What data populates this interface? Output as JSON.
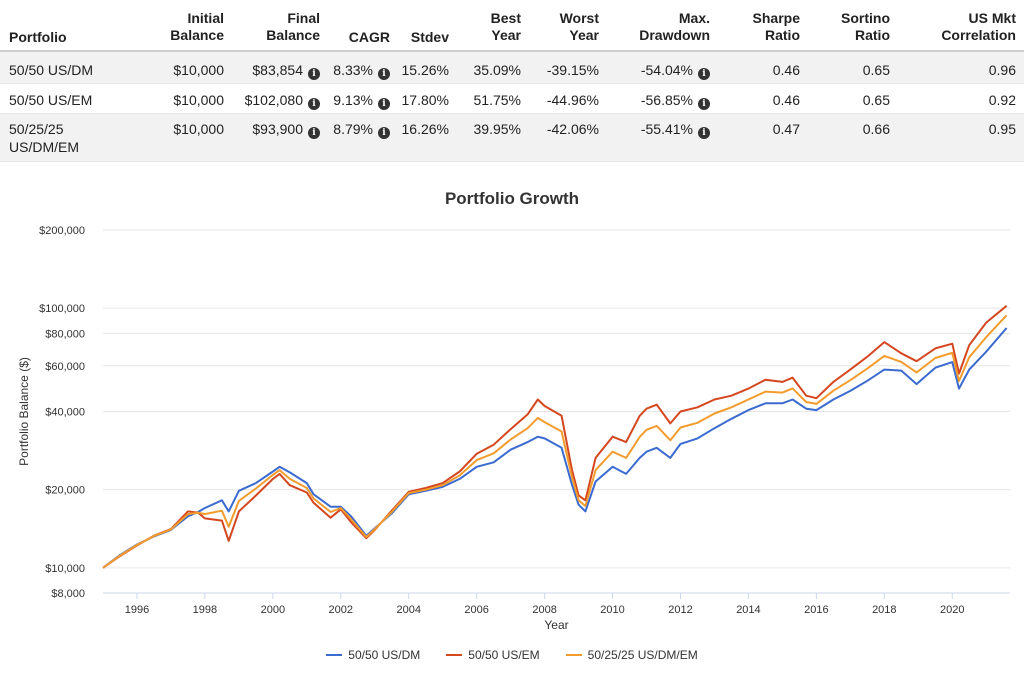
{
  "table": {
    "headers": {
      "portfolio": "Portfolio",
      "initial": [
        "Initial",
        "Balance"
      ],
      "final": [
        "Final",
        "Balance"
      ],
      "cagr": "CAGR",
      "stdev": "Stdev",
      "best": [
        "Best",
        "Year"
      ],
      "worst": [
        "Worst",
        "Year"
      ],
      "mdd": [
        "Max.",
        "Drawdown"
      ],
      "sharpe": [
        "Sharpe",
        "Ratio"
      ],
      "sortino": [
        "Sortino",
        "Ratio"
      ],
      "corr": [
        "US Mkt",
        "Correlation"
      ]
    },
    "rows": [
      {
        "portfolio": "50/50 US/DM",
        "initial": "$10,000",
        "final": "$83,854",
        "cagr": "8.33%",
        "stdev": "15.26%",
        "best": "35.09%",
        "worst": "-39.15%",
        "mdd": "-54.04%",
        "sharpe": "0.46",
        "sortino": "0.65",
        "corr": "0.96"
      },
      {
        "portfolio": "50/50 US/EM",
        "initial": "$10,000",
        "final": "$102,080",
        "cagr": "9.13%",
        "stdev": "17.80%",
        "best": "51.75%",
        "worst": "-44.96%",
        "mdd": "-56.85%",
        "sharpe": "0.46",
        "sortino": "0.65",
        "corr": "0.92"
      },
      {
        "portfolio": "50/25/25 US/DM/EM",
        "initial": "$10,000",
        "final": "$93,900",
        "cagr": "8.79%",
        "stdev": "16.26%",
        "best": "39.95%",
        "worst": "-42.06%",
        "mdd": "-55.41%",
        "sharpe": "0.47",
        "sortino": "0.66",
        "corr": "0.95"
      }
    ]
  },
  "chart_data": {
    "type": "line",
    "title": "Portfolio Growth",
    "xlabel": "Year",
    "ylabel": "Portfolio Balance ($)",
    "y_scale": "log",
    "ylim": [
      8000,
      200000
    ],
    "xlim": [
      1995.0,
      2021.7
    ],
    "yticks": [
      {
        "value": 200000,
        "label": "$200,000"
      },
      {
        "value": 100000,
        "label": "$100,000"
      },
      {
        "value": 80000,
        "label": "$80,000"
      },
      {
        "value": 60000,
        "label": "$60,000"
      },
      {
        "value": 40000,
        "label": "$40,000"
      },
      {
        "value": 20000,
        "label": "$20,000"
      },
      {
        "value": 10000,
        "label": "$10,000"
      },
      {
        "value": 8000,
        "label": "$8,000"
      }
    ],
    "xticks": [
      1996,
      1998,
      2000,
      2002,
      2004,
      2006,
      2008,
      2010,
      2012,
      2014,
      2016,
      2018,
      2020
    ],
    "grid": "horizontal",
    "legend_position": "bottom",
    "x": [
      1995.0,
      1995.5,
      1996.0,
      1996.5,
      1997.0,
      1997.5,
      1997.8,
      1998.0,
      1998.5,
      1998.7,
      1999.0,
      1999.5,
      2000.0,
      2000.2,
      2000.5,
      2001.0,
      2001.2,
      2001.7,
      2002.0,
      2002.3,
      2002.75,
      2003.0,
      2003.5,
      2004.0,
      2004.5,
      2005.0,
      2005.5,
      2006.0,
      2006.5,
      2007.0,
      2007.5,
      2007.8,
      2008.0,
      2008.5,
      2008.8,
      2009.0,
      2009.2,
      2009.5,
      2010.0,
      2010.4,
      2010.8,
      2011.0,
      2011.3,
      2011.7,
      2012.0,
      2012.5,
      2013.0,
      2013.5,
      2014.0,
      2014.5,
      2015.0,
      2015.3,
      2015.7,
      2016.0,
      2016.5,
      2017.0,
      2017.5,
      2018.0,
      2018.5,
      2018.95,
      2019.5,
      2020.0,
      2020.2,
      2020.5,
      2021.0,
      2021.6
    ],
    "series": [
      {
        "name": "50/50 US/DM",
        "color": "#3b6bd0",
        "values": [
          10000,
          11200,
          12300,
          13200,
          14000,
          15800,
          16400,
          17000,
          18200,
          16500,
          19800,
          21200,
          23500,
          24500,
          23300,
          21200,
          19200,
          17200,
          17200,
          15800,
          13300,
          14200,
          16200,
          19200,
          19800,
          20500,
          22000,
          24500,
          25500,
          28500,
          30500,
          32000,
          31500,
          29000,
          21000,
          17500,
          16500,
          21500,
          24500,
          23000,
          26500,
          28000,
          29000,
          26500,
          30000,
          31500,
          34500,
          37500,
          40500,
          43000,
          43000,
          44500,
          41000,
          40500,
          44500,
          48000,
          52500,
          58000,
          57500,
          51000,
          59000,
          62000,
          49000,
          58000,
          68000,
          83854
        ]
      },
      {
        "name": "50/50 US/EM",
        "color": "#d4471f",
        "values": [
          10000,
          11100,
          12200,
          13300,
          14100,
          16500,
          16300,
          15500,
          15200,
          12700,
          16500,
          19000,
          22000,
          23000,
          20800,
          19500,
          17800,
          15600,
          16800,
          15000,
          13000,
          14000,
          16600,
          19600,
          20300,
          21200,
          23500,
          27500,
          29800,
          34200,
          39000,
          44500,
          42000,
          38500,
          24000,
          19000,
          18200,
          26500,
          32000,
          30500,
          38500,
          41000,
          42500,
          36000,
          40000,
          41500,
          44500,
          46000,
          49000,
          53000,
          52000,
          54000,
          46000,
          45000,
          52000,
          58000,
          65000,
          74000,
          67000,
          62500,
          70000,
          73000,
          56000,
          72000,
          88000,
          102080
        ]
      },
      {
        "name": "50/25/25 US/DM/EM",
        "color": "#f39c2e",
        "values": [
          10000,
          11150,
          12250,
          13250,
          14050,
          16100,
          16300,
          16100,
          16600,
          14400,
          18100,
          20200,
          22800,
          23800,
          22000,
          20300,
          18500,
          16400,
          17000,
          15400,
          13150,
          14100,
          16400,
          19400,
          20000,
          20800,
          22700,
          26000,
          27600,
          31200,
          34500,
          37800,
          36400,
          33500,
          22500,
          18200,
          17300,
          23800,
          28000,
          26500,
          31900,
          34000,
          35200,
          31000,
          34700,
          36200,
          39300,
          41500,
          44500,
          47700,
          47300,
          49100,
          43500,
          42800,
          48100,
          52800,
          58500,
          65500,
          62100,
          56600,
          64300,
          67300,
          52400,
          64700,
          77400,
          93900
        ]
      }
    ]
  },
  "icons": {
    "info": "info-circle-icon"
  }
}
